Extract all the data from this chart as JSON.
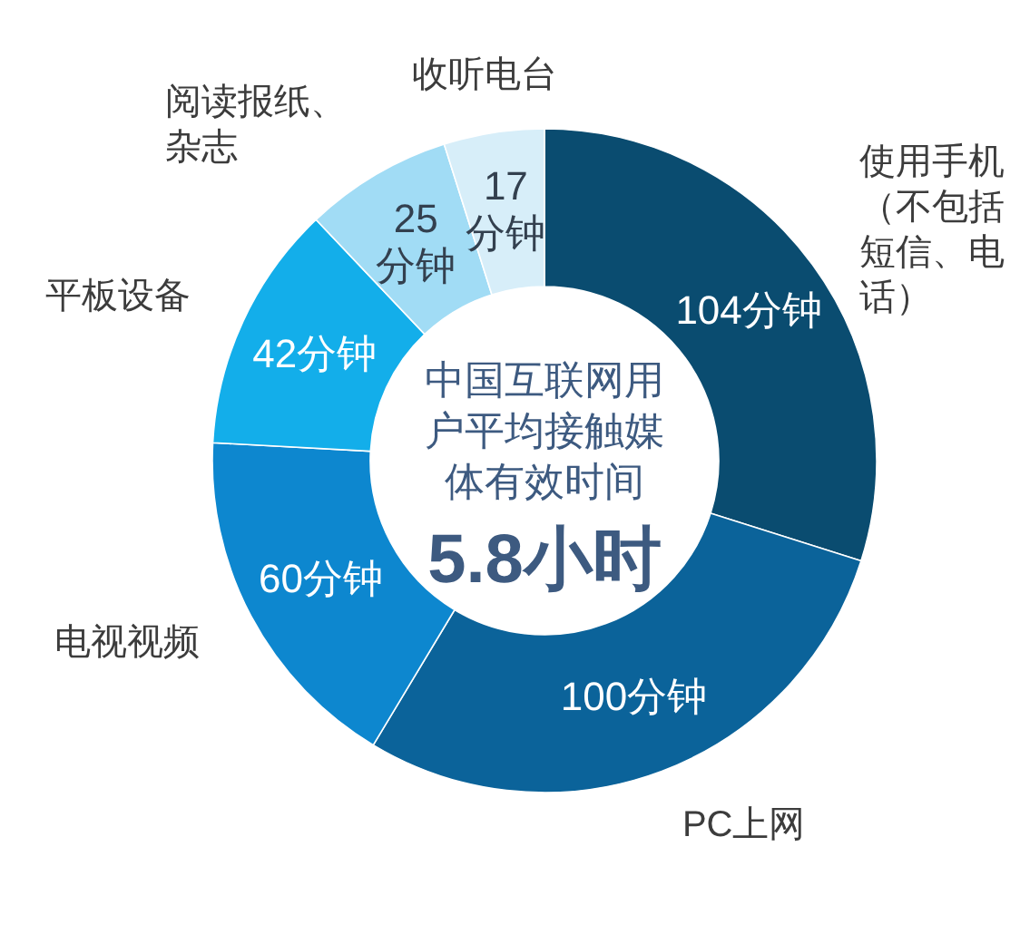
{
  "chart_data": {
    "type": "donut",
    "categories": [
      "使用手机（不包括短信、电话）",
      "PC上网",
      "电视视频",
      "平板设备",
      "阅读报纸、杂志",
      "收听电台"
    ],
    "values": [
      104,
      100,
      60,
      42,
      25,
      17
    ],
    "colors": [
      "#0a4c70",
      "#0b639a",
      "#0d87cf",
      "#13aeea",
      "#a1dcf5",
      "#d7eef9"
    ],
    "value_labels": [
      "104分钟",
      "100分钟",
      "60分钟",
      "42分钟",
      "25分钟",
      "17分钟"
    ],
    "annotations": [
      "中国互联网用户平均接触媒体有效时间",
      "5.8小时"
    ]
  }
}
